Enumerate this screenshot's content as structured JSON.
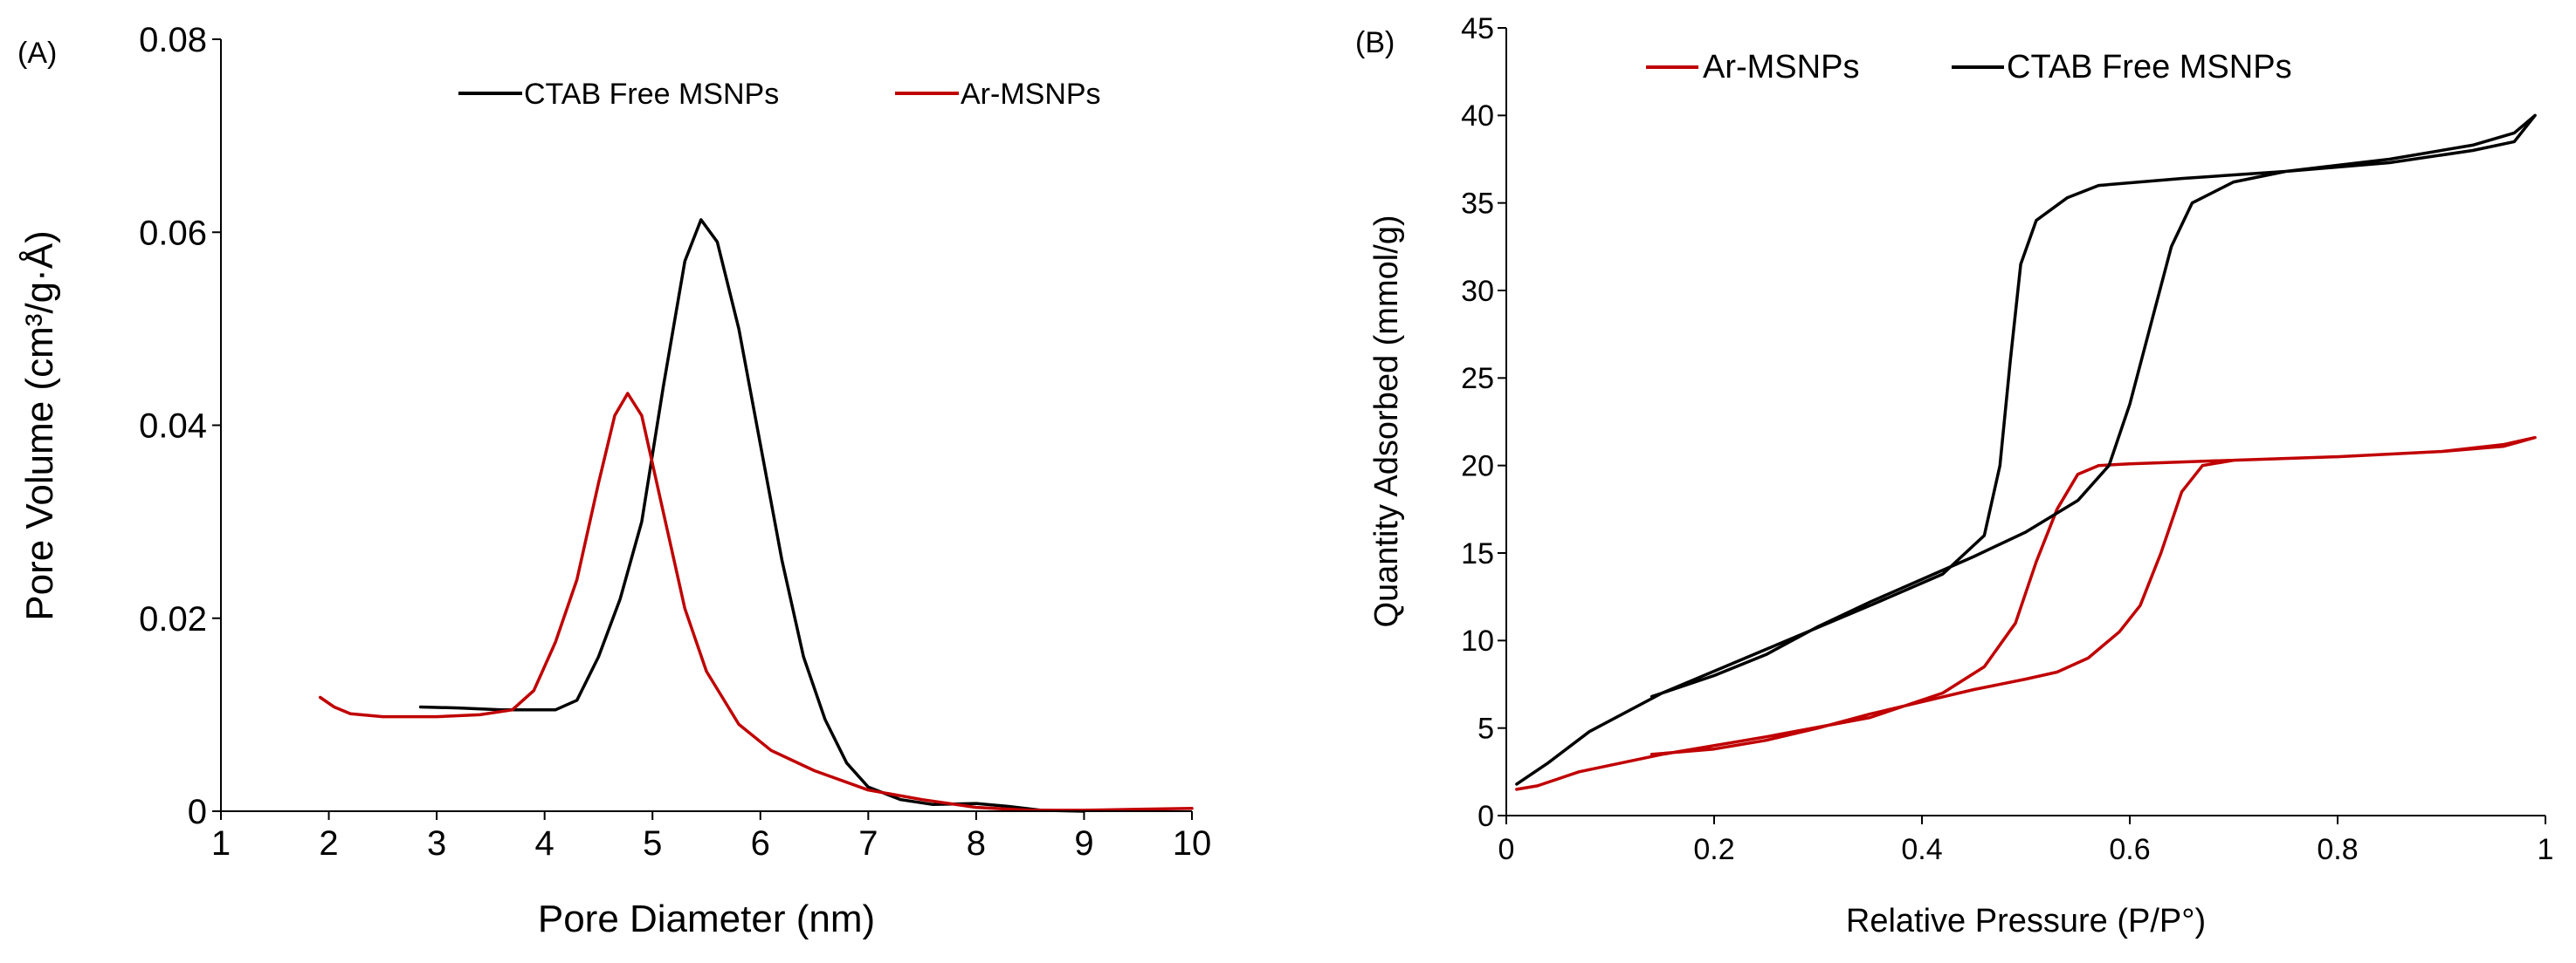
{
  "chart_data": [
    {
      "type": "line",
      "panel_label": "(A)",
      "xlabel": "Pore Diameter (nm)",
      "ylabel": "Pore Volume (cm³/g·Å)",
      "xlim": [
        1,
        10
      ],
      "ylim": [
        0,
        0.08
      ],
      "x_ticks": [
        "1",
        "2",
        "3",
        "4",
        "5",
        "6",
        "7",
        "8",
        "9",
        "10"
      ],
      "y_ticks": [
        "0",
        "0.02",
        "0.04",
        "0.06",
        "0.08"
      ],
      "grid": false,
      "legend_position": "top",
      "series": [
        {
          "name": "CTAB Free MSNPs",
          "color": "#000000",
          "x": [
            2.85,
            3.2,
            3.6,
            3.9,
            4.1,
            4.3,
            4.5,
            4.7,
            4.9,
            5.1,
            5.3,
            5.45,
            5.6,
            5.8,
            6.0,
            6.2,
            6.4,
            6.6,
            6.8,
            7.0,
            7.3,
            7.6,
            8.0,
            8.3,
            8.6,
            9.0
          ],
          "y": [
            0.0108,
            0.0107,
            0.0105,
            0.0105,
            0.0105,
            0.0115,
            0.016,
            0.022,
            0.03,
            0.044,
            0.057,
            0.0613,
            0.059,
            0.05,
            0.038,
            0.026,
            0.016,
            0.0095,
            0.005,
            0.0025,
            0.0012,
            0.0007,
            0.0008,
            0.0005,
            0.0001,
            0.0
          ]
        },
        {
          "name": "Ar-MSNPs",
          "color": "#c00000",
          "x": [
            1.92,
            2.05,
            2.2,
            2.5,
            3.0,
            3.4,
            3.7,
            3.9,
            4.1,
            4.3,
            4.5,
            4.65,
            4.77,
            4.9,
            5.1,
            5.3,
            5.5,
            5.8,
            6.1,
            6.5,
            7.0,
            7.5,
            8.0,
            8.5,
            9.0,
            9.5,
            10.0
          ],
          "y": [
            0.0118,
            0.0108,
            0.0101,
            0.0098,
            0.0098,
            0.01,
            0.0105,
            0.0125,
            0.0175,
            0.024,
            0.034,
            0.041,
            0.0433,
            0.041,
            0.031,
            0.021,
            0.0145,
            0.009,
            0.0063,
            0.0042,
            0.0022,
            0.0012,
            0.0004,
            0.0001,
            0.0001,
            0.0002,
            0.0003
          ]
        }
      ]
    },
    {
      "type": "line",
      "panel_label": "(B)",
      "xlabel": "Relative Pressure (P/P°)",
      "ylabel": "Quantity Adsorbed (mmol/g)",
      "xlim": [
        0,
        1
      ],
      "ylim": [
        0,
        45
      ],
      "x_ticks": [
        "0",
        "0.2",
        "0.4",
        "0.6",
        "0.8",
        "1"
      ],
      "y_ticks": [
        "0",
        "5",
        "10",
        "15",
        "20",
        "25",
        "30",
        "35",
        "40",
        "45"
      ],
      "grid": false,
      "legend_position": "top-left",
      "series": [
        {
          "name": "Ar-MSNPs",
          "color": "#c00000",
          "x": [
            0.01,
            0.03,
            0.07,
            0.15,
            0.25,
            0.35,
            0.42,
            0.46,
            0.49,
            0.51,
            0.53,
            0.55,
            0.57,
            0.6,
            0.7,
            0.8,
            0.9,
            0.96,
            0.99,
            0.96,
            0.9,
            0.8,
            0.7,
            0.67,
            0.65,
            0.63,
            0.61,
            0.59,
            0.56,
            0.53,
            0.5,
            0.45,
            0.4,
            0.35,
            0.3,
            0.25,
            0.2,
            0.14
          ],
          "y": [
            1.5,
            1.7,
            2.5,
            3.5,
            4.5,
            5.6,
            7.0,
            8.5,
            11.0,
            14.5,
            17.5,
            19.5,
            20.0,
            20.1,
            20.3,
            20.5,
            20.8,
            21.2,
            21.6,
            21.1,
            20.8,
            20.5,
            20.3,
            20.0,
            18.5,
            15.0,
            12.0,
            10.5,
            9.0,
            8.2,
            7.8,
            7.2,
            6.5,
            5.8,
            5.0,
            4.3,
            3.8,
            3.5
          ]
        },
        {
          "name": "CTAB Free MSNPs",
          "color": "#000000",
          "x": [
            0.01,
            0.04,
            0.08,
            0.15,
            0.25,
            0.35,
            0.42,
            0.46,
            0.475,
            0.485,
            0.495,
            0.51,
            0.54,
            0.57,
            0.65,
            0.75,
            0.85,
            0.93,
            0.97,
            0.99,
            0.97,
            0.93,
            0.85,
            0.75,
            0.7,
            0.66,
            0.64,
            0.62,
            0.6,
            0.58,
            0.55,
            0.5,
            0.45,
            0.4,
            0.35,
            0.3,
            0.25,
            0.2,
            0.14
          ],
          "y": [
            1.8,
            3.0,
            4.8,
            7.0,
            9.5,
            12.0,
            13.8,
            16.0,
            20.0,
            26.0,
            31.5,
            34.0,
            35.3,
            36.0,
            36.4,
            36.8,
            37.3,
            38.0,
            38.5,
            40.0,
            39.0,
            38.3,
            37.5,
            36.8,
            36.2,
            35.0,
            32.5,
            28.0,
            23.5,
            20.0,
            18.0,
            16.2,
            14.8,
            13.5,
            12.2,
            10.8,
            9.2,
            8.0,
            6.8
          ]
        }
      ]
    }
  ]
}
